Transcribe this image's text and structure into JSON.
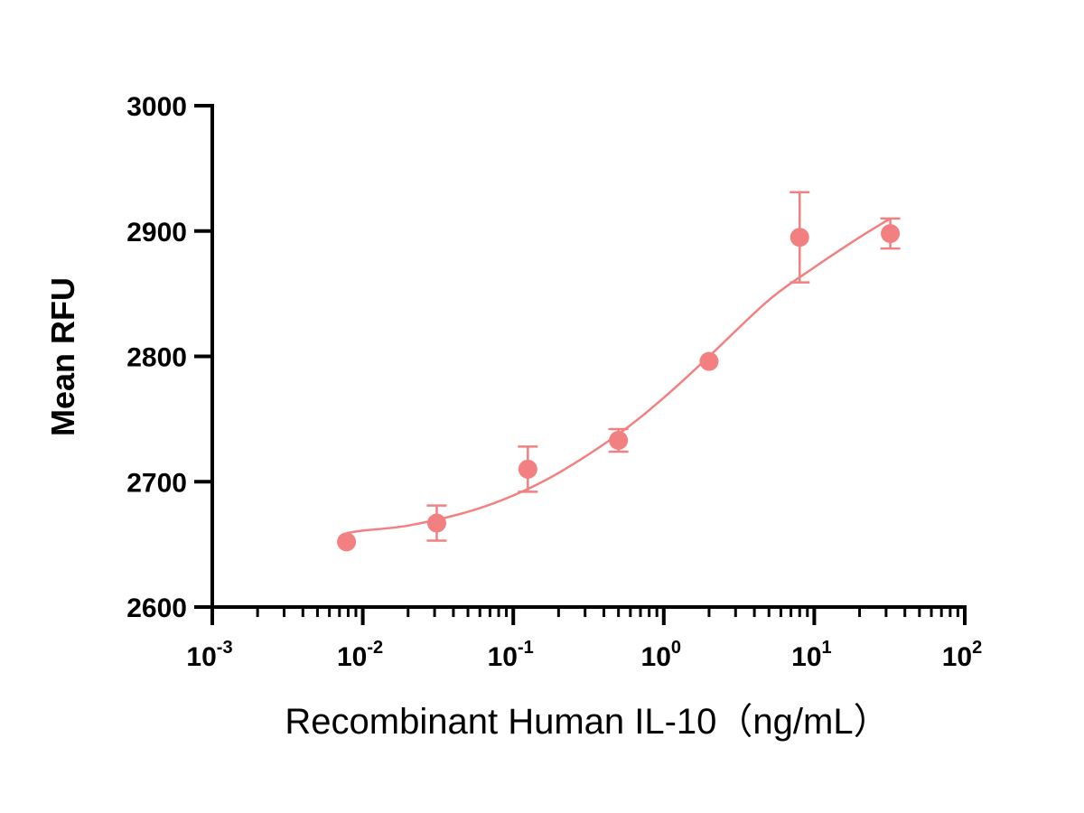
{
  "chart_data": {
    "type": "scatter",
    "title": "",
    "xlabel": "Recombinant Human IL-10（ng/mL）",
    "ylabel": "Mean RFU",
    "xscale": "log",
    "xlim": [
      0.001,
      100
    ],
    "ylim": [
      2600,
      3000
    ],
    "grid": false,
    "legend": "none",
    "color": "#F28080",
    "x_ticks": [
      {
        "base": "10",
        "exp": "-3"
      },
      {
        "base": "10",
        "exp": "-2"
      },
      {
        "base": "10",
        "exp": "-1"
      },
      {
        "base": "10",
        "exp": "0"
      },
      {
        "base": "10",
        "exp": "1"
      },
      {
        "base": "10",
        "exp": "2"
      }
    ],
    "y_ticks": [
      "2600",
      "2700",
      "2800",
      "2900",
      "3000"
    ],
    "series": [
      {
        "x": [
          0.0078,
          0.031,
          0.125,
          0.5,
          2,
          8,
          32
        ],
        "y": [
          2652,
          2667,
          2710,
          2733,
          2796,
          2895,
          2898
        ],
        "error": [
          0,
          14,
          18,
          9,
          0,
          36,
          12
        ]
      }
    ],
    "fit": {
      "type": "four-parameter logistic",
      "x": [
        0.0078,
        0.01,
        0.02,
        0.05,
        0.1,
        0.2,
        0.5,
        1,
        2,
        5,
        10,
        20,
        32
      ],
      "y": [
        2659,
        2661,
        2665,
        2676,
        2689,
        2707,
        2738,
        2767,
        2800,
        2845,
        2871,
        2895,
        2910
      ]
    }
  }
}
